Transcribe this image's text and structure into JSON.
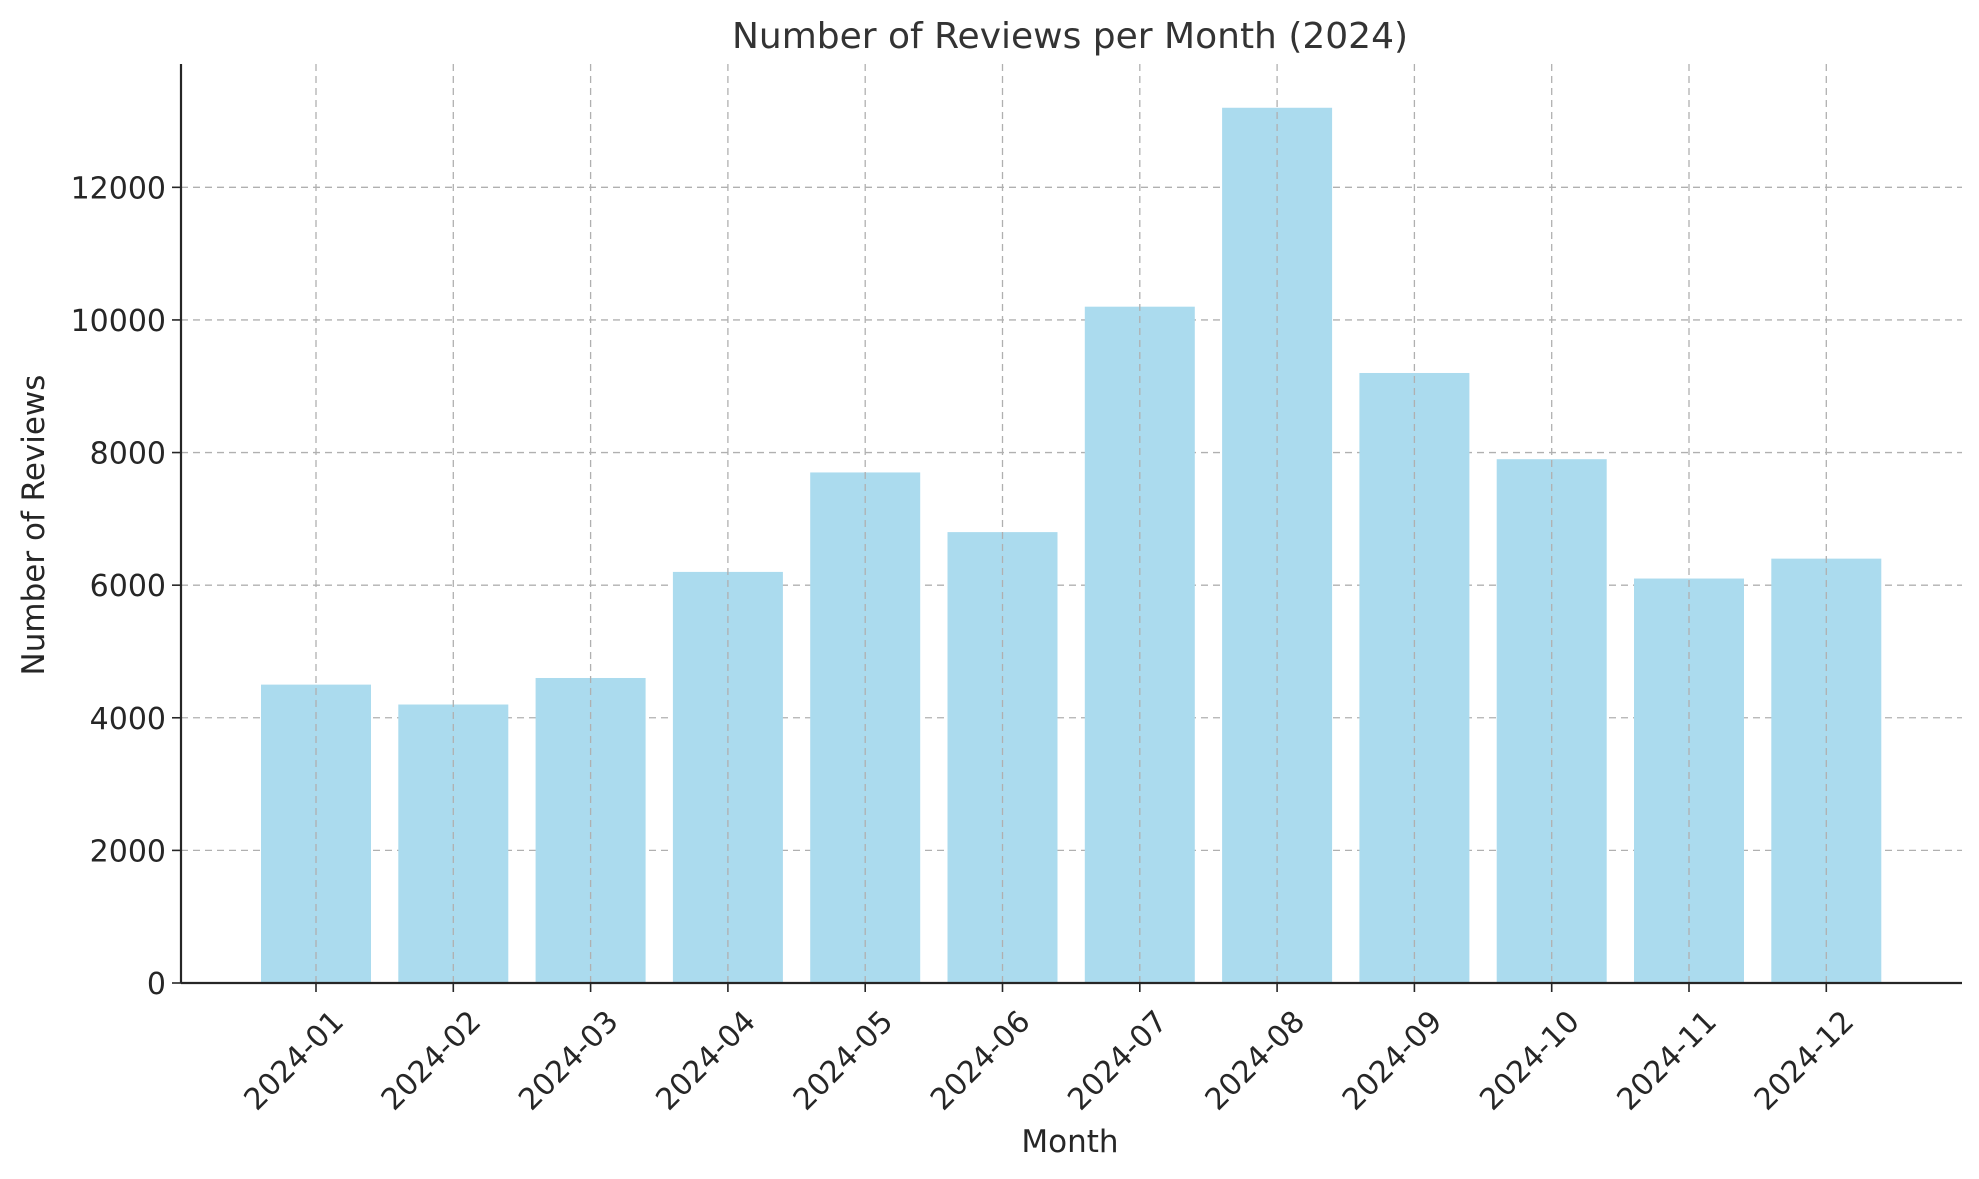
{
  "chart_data": {
    "type": "bar",
    "title": "Number of Reviews per Month (2024)",
    "xlabel": "Month",
    "ylabel": "Number of Reviews",
    "categories": [
      "2024-01",
      "2024-02",
      "2024-03",
      "2024-04",
      "2024-05",
      "2024-06",
      "2024-07",
      "2024-08",
      "2024-09",
      "2024-10",
      "2024-11",
      "2024-12"
    ],
    "values": [
      4500,
      4200,
      4600,
      6200,
      7700,
      6800,
      10200,
      13200,
      9200,
      7900,
      6100,
      6400
    ],
    "ylim": [
      0,
      13860
    ],
    "yticks": [
      0,
      2000,
      4000,
      6000,
      8000,
      10000,
      12000
    ],
    "grid": true,
    "bar_color": "#ABDBEE",
    "grid_color": "#B0B0B0",
    "axis_color": "#262626",
    "x_tick_rotation_deg": -45
  }
}
